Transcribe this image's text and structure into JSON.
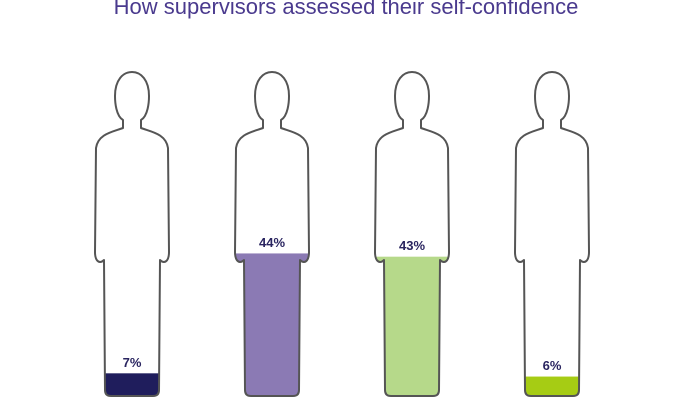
{
  "chart_data": {
    "type": "pictograph",
    "title": "How supervisors assessed their self-confidence",
    "values": [
      7,
      44,
      43,
      6
    ],
    "value_labels": [
      "7%",
      "44%",
      "43%",
      "6%"
    ],
    "colors": [
      "#1f1d5c",
      "#8b7ab4",
      "#b6d98a",
      "#a6cc14"
    ],
    "ylim": [
      0,
      100
    ]
  }
}
